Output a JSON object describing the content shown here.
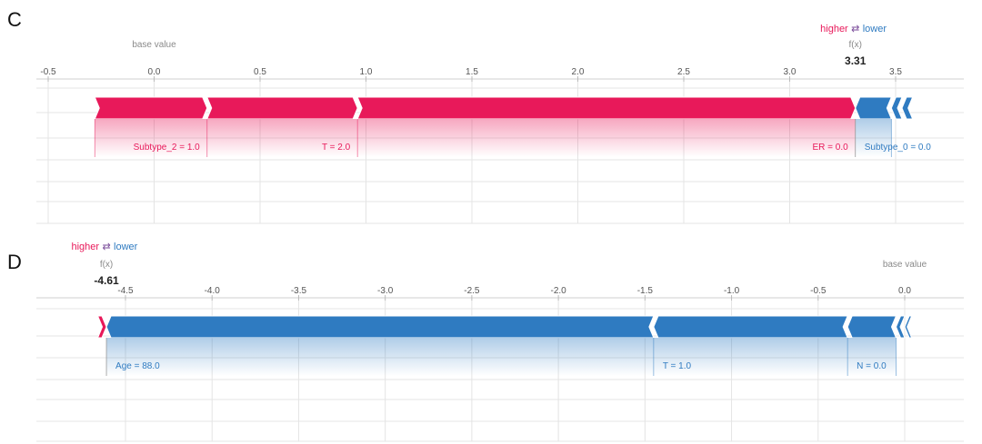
{
  "colors": {
    "positive": "#e8195a",
    "negative": "#2f7bc1",
    "grid": "#e4e4e4",
    "axis_text": "#555555",
    "muted_text": "#8a8a8a",
    "value_text": "#222222"
  },
  "chart_data": [
    {
      "type": "force",
      "panel_label": "C",
      "xlim": [
        -0.5,
        3.5
      ],
      "ticks": [
        -0.5,
        0.0,
        0.5,
        1.0,
        1.5,
        2.0,
        2.5,
        3.0,
        3.5
      ],
      "tick_labels": [
        "-0.5",
        "0.0",
        "0.5",
        "1.0",
        "1.5",
        "2.0",
        "2.5",
        "3.0",
        "3.5"
      ],
      "legend": {
        "higher": "higher",
        "arrows": "⇄",
        "lower": "lower"
      },
      "fx_label": "f(x)",
      "fx_value": 3.31,
      "fx_text": "3.31",
      "base_value_label": "base value",
      "base_value": 0.0,
      "positive_segments": [
        {
          "start": -0.28,
          "end": 0.25,
          "label": "Subtype_2 = 1.0"
        },
        {
          "start": 0.25,
          "end": 0.96,
          "label": "T = 2.0"
        },
        {
          "start": 0.96,
          "end": 3.31,
          "label": "ER = 0.0"
        }
      ],
      "negative_segments": [
        {
          "start": 3.31,
          "end": 3.48,
          "label": "Subtype_0 = 0.0"
        },
        {
          "start": 3.48,
          "end": 3.53,
          "label": ""
        },
        {
          "start": 3.53,
          "end": 3.58,
          "label": ""
        }
      ]
    },
    {
      "type": "force",
      "panel_label": "D",
      "xlim": [
        -4.5,
        0.0
      ],
      "ticks": [
        -4.5,
        -4.0,
        -3.5,
        -3.0,
        -2.5,
        -2.0,
        -1.5,
        -1.0,
        -0.5,
        0.0
      ],
      "tick_labels": [
        "-4.5",
        "-4.0",
        "-3.5",
        "-3.0",
        "-2.5",
        "-2.0",
        "-1.5",
        "-1.0",
        "-0.5",
        "0.0"
      ],
      "legend": {
        "higher": "higher",
        "arrows": "⇄",
        "lower": "lower"
      },
      "fx_label": "f(x)",
      "fx_value": -4.61,
      "fx_text": "-4.61",
      "base_value_label": "base value",
      "base_value": 0.0,
      "positive_segments": [
        {
          "start": -4.66,
          "end": -4.61,
          "label": ""
        }
      ],
      "negative_segments": [
        {
          "start": -4.61,
          "end": -1.45,
          "label": "Age = 88.0"
        },
        {
          "start": -1.45,
          "end": -0.33,
          "label": "T = 1.0"
        },
        {
          "start": -0.33,
          "end": -0.05,
          "label": "N = 0.0"
        },
        {
          "start": -0.05,
          "end": 0.0,
          "label": ""
        },
        {
          "start": 0.0,
          "end": 0.04,
          "label": ""
        }
      ]
    }
  ]
}
